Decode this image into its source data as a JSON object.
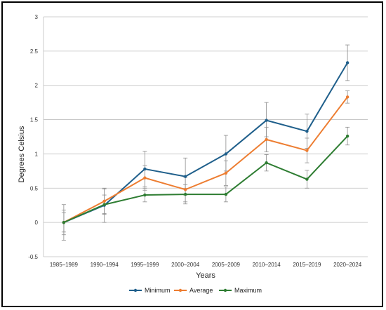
{
  "chart_data": {
    "type": "line",
    "title": "",
    "xlabel": "Years",
    "ylabel": "Degrees Celsius",
    "ylim": [
      -0.5,
      3
    ],
    "yticks": [
      "-0.5",
      "0",
      "0.5",
      "1",
      "1.5",
      "2",
      "2.5",
      "3"
    ],
    "grid": true,
    "legend_position": "bottom",
    "categories": [
      "1985–1989",
      "1990–1994",
      "1995–1999",
      "2000–2004",
      "2005–2009",
      "2010–2014",
      "2015–2019",
      "2020–2024"
    ],
    "series": [
      {
        "name": "Minimum",
        "color": "#1f5f8b",
        "values": [
          0.0,
          0.25,
          0.78,
          0.67,
          1.0,
          1.49,
          1.33,
          2.33
        ],
        "error_low": [
          -0.26,
          0.0,
          0.52,
          0.4,
          0.75,
          1.25,
          1.08,
          2.07
        ],
        "error_high": [
          0.26,
          0.5,
          1.04,
          0.94,
          1.27,
          1.75,
          1.58,
          2.59
        ]
      },
      {
        "name": "Average",
        "color": "#ed7d31",
        "values": [
          0.0,
          0.31,
          0.65,
          0.48,
          0.72,
          1.21,
          1.05,
          1.83
        ],
        "error_low": [
          -0.18,
          0.13,
          0.47,
          0.3,
          0.54,
          1.03,
          0.87,
          1.74
        ],
        "error_high": [
          0.18,
          0.49,
          0.83,
          0.66,
          0.9,
          1.39,
          1.23,
          1.92
        ]
      },
      {
        "name": "Maximum",
        "color": "#2e7d32",
        "values": [
          0.0,
          0.26,
          0.4,
          0.41,
          0.41,
          0.87,
          0.63,
          1.26
        ],
        "error_low": [
          -0.14,
          0.12,
          0.3,
          0.27,
          0.3,
          0.75,
          0.5,
          1.13
        ],
        "error_high": [
          0.14,
          0.4,
          0.5,
          0.55,
          0.52,
          0.99,
          0.76,
          1.39
        ]
      }
    ]
  }
}
